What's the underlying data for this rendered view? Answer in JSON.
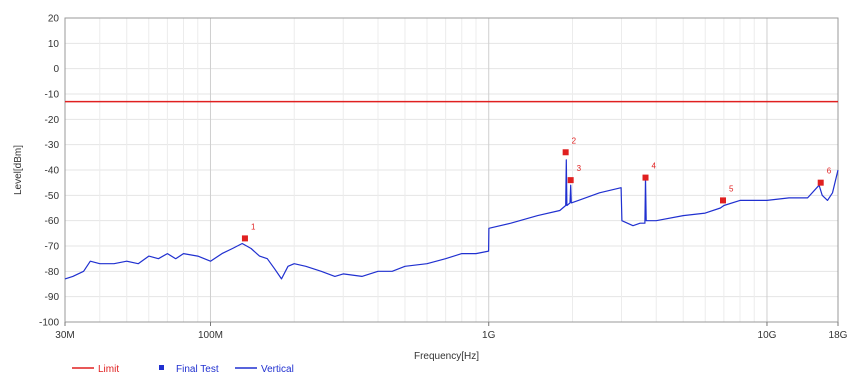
{
  "chart_data": {
    "type": "line",
    "xlabel": "Frequency[Hz]",
    "ylabel": "Level[dBm]",
    "x_scale": "log",
    "xlim": [
      30000000,
      18000000000
    ],
    "ylim": [
      -100,
      20
    ],
    "y_ticks": [
      20,
      10,
      0,
      -10,
      -20,
      -30,
      -40,
      -50,
      -60,
      -70,
      -80,
      -90,
      -100
    ],
    "x_ticks": [
      {
        "value": 30000000,
        "label": "30M"
      },
      {
        "value": 100000000,
        "label": "100M"
      },
      {
        "value": 1000000000,
        "label": "1G"
      },
      {
        "value": 10000000000,
        "label": "10G"
      },
      {
        "value": 18000000000,
        "label": "18G"
      }
    ],
    "grid": true,
    "legend_position": "bottom-left",
    "series": [
      {
        "name": "Limit",
        "type": "line",
        "color": "#e02020",
        "x": [
          30000000,
          18000000000
        ],
        "y": [
          -13,
          -13
        ]
      },
      {
        "name": "Vertical",
        "type": "line",
        "color": "#2030d0",
        "x": [
          30000000,
          32000000,
          35000000,
          37000000,
          40000000,
          45000000,
          50000000,
          55000000,
          60000000,
          65000000,
          70000000,
          75000000,
          80000000,
          90000000,
          100000000,
          110000000,
          120000000,
          130000000,
          140000000,
          150000000,
          160000000,
          170000000,
          180000000,
          190000000,
          200000000,
          220000000,
          250000000,
          280000000,
          300000000,
          350000000,
          400000000,
          450000000,
          500000000,
          600000000,
          700000000,
          800000000,
          900000000,
          999000000,
          1001000000,
          1200000000,
          1500000000,
          1800000000,
          1890000000,
          1900000000,
          1910000000,
          1960000000,
          1970000000,
          1980000000,
          2100000000,
          2500000000,
          2990000000,
          3010000000,
          3300000000,
          3500000000,
          3640000000,
          3660000000,
          3680000000,
          4000000000,
          5000000000,
          6000000000,
          6800000000,
          7000000000,
          8000000000,
          10000000000,
          12000000000,
          14000000000,
          15400000000,
          15800000000,
          16500000000,
          17200000000,
          18000000000
        ],
        "y": [
          -83,
          -82,
          -80,
          -76,
          -77,
          -77,
          -76,
          -77,
          -74,
          -75,
          -73,
          -75,
          -73,
          -74,
          -76,
          -73,
          -71,
          -69,
          -71,
          -74,
          -75,
          -79,
          -83,
          -78,
          -77,
          -78,
          -80,
          -82,
          -81,
          -82,
          -80,
          -80,
          -78,
          -77,
          -75,
          -73,
          -73,
          -72,
          -63,
          -61,
          -58,
          -56,
          -54,
          -36,
          -54,
          -53,
          -46,
          -53,
          -52,
          -49,
          -47,
          -60,
          -62,
          -61,
          -61,
          -43,
          -60,
          -60,
          -58,
          -57,
          -55,
          -54,
          -52,
          -52,
          -51,
          -51,
          -46,
          -50,
          -52,
          -49,
          -40
        ]
      }
    ],
    "final_test": {
      "name": "Final Test",
      "color": "#e02020",
      "points": [
        {
          "label": "1",
          "x": 133000000,
          "y": -67
        },
        {
          "label": "2",
          "x": 1890000000,
          "y": -33
        },
        {
          "label": "3",
          "x": 1970000000,
          "y": -44
        },
        {
          "label": "4",
          "x": 3660000000,
          "y": -43
        },
        {
          "label": "5",
          "x": 6950000000,
          "y": -52
        },
        {
          "label": "6",
          "x": 15600000000,
          "y": -45
        }
      ]
    },
    "legend": [
      {
        "label": "Limit",
        "color": "#e02020",
        "marker": "line"
      },
      {
        "label": "Final Test",
        "color": "#2030d0",
        "marker": "square"
      },
      {
        "label": "Vertical",
        "color": "#2030d0",
        "marker": "line"
      }
    ]
  }
}
